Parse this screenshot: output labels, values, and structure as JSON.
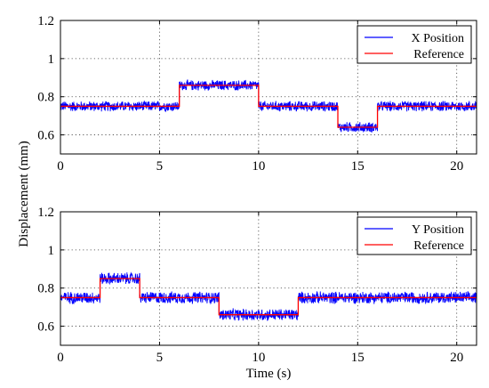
{
  "chart_data": [
    {
      "type": "line",
      "xlabel": "",
      "ylabel": "",
      "xlim": [
        0,
        21
      ],
      "ylim": [
        0.5,
        1.2
      ],
      "xticks": [
        0,
        5,
        10,
        15,
        20
      ],
      "yticks": [
        0.6,
        0.8,
        1,
        1.2
      ],
      "xtick_labels": [
        "0",
        "5",
        "10",
        "15",
        "20"
      ],
      "ytick_labels": [
        "0.6",
        "0.8",
        "1",
        "1.2"
      ],
      "grid": true,
      "legend_position": "top-right",
      "noise_amplitude": 0.03,
      "series": [
        {
          "name": "X Position",
          "color": "#0000ff",
          "noisy": true,
          "segments": [
            {
              "x_start": 0,
              "x_end": 6,
              "y": 0.75
            },
            {
              "x_start": 6,
              "x_end": 10,
              "y": 0.86
            },
            {
              "x_start": 10,
              "x_end": 14,
              "y": 0.75
            },
            {
              "x_start": 14,
              "x_end": 16,
              "y": 0.64
            },
            {
              "x_start": 16,
              "x_end": 21,
              "y": 0.75
            }
          ]
        },
        {
          "name": "Reference",
          "color": "#ff0000",
          "noisy": false,
          "segments": [
            {
              "x_start": 0,
              "x_end": 6,
              "y": 0.75
            },
            {
              "x_start": 6,
              "x_end": 10,
              "y": 0.86
            },
            {
              "x_start": 10,
              "x_end": 14,
              "y": 0.75
            },
            {
              "x_start": 14,
              "x_end": 16,
              "y": 0.64
            },
            {
              "x_start": 16,
              "x_end": 21,
              "y": 0.75
            }
          ]
        }
      ]
    },
    {
      "type": "line",
      "xlabel": "Time (s)",
      "ylabel": "",
      "xlim": [
        0,
        21
      ],
      "ylim": [
        0.5,
        1.2
      ],
      "xticks": [
        0,
        5,
        10,
        15,
        20
      ],
      "yticks": [
        0.6,
        0.8,
        1,
        1.2
      ],
      "xtick_labels": [
        "0",
        "5",
        "10",
        "15",
        "20"
      ],
      "ytick_labels": [
        "0.6",
        "0.8",
        "1",
        "1.2"
      ],
      "grid": true,
      "legend_position": "top-right",
      "noise_amplitude": 0.035,
      "series": [
        {
          "name": "Y Position",
          "color": "#0000ff",
          "noisy": true,
          "segments": [
            {
              "x_start": 0,
              "x_end": 2,
              "y": 0.75
            },
            {
              "x_start": 2,
              "x_end": 4,
              "y": 0.85
            },
            {
              "x_start": 4,
              "x_end": 8,
              "y": 0.75
            },
            {
              "x_start": 8,
              "x_end": 12,
              "y": 0.66
            },
            {
              "x_start": 12,
              "x_end": 21,
              "y": 0.75
            }
          ]
        },
        {
          "name": "Reference",
          "color": "#ff0000",
          "noisy": false,
          "segments": [
            {
              "x_start": 0,
              "x_end": 2,
              "y": 0.75
            },
            {
              "x_start": 2,
              "x_end": 4,
              "y": 0.85
            },
            {
              "x_start": 4,
              "x_end": 8,
              "y": 0.75
            },
            {
              "x_start": 8,
              "x_end": 12,
              "y": 0.66
            },
            {
              "x_start": 12,
              "x_end": 21,
              "y": 0.75
            }
          ]
        }
      ]
    }
  ],
  "shared_ylabel": "Displacement (mm)"
}
